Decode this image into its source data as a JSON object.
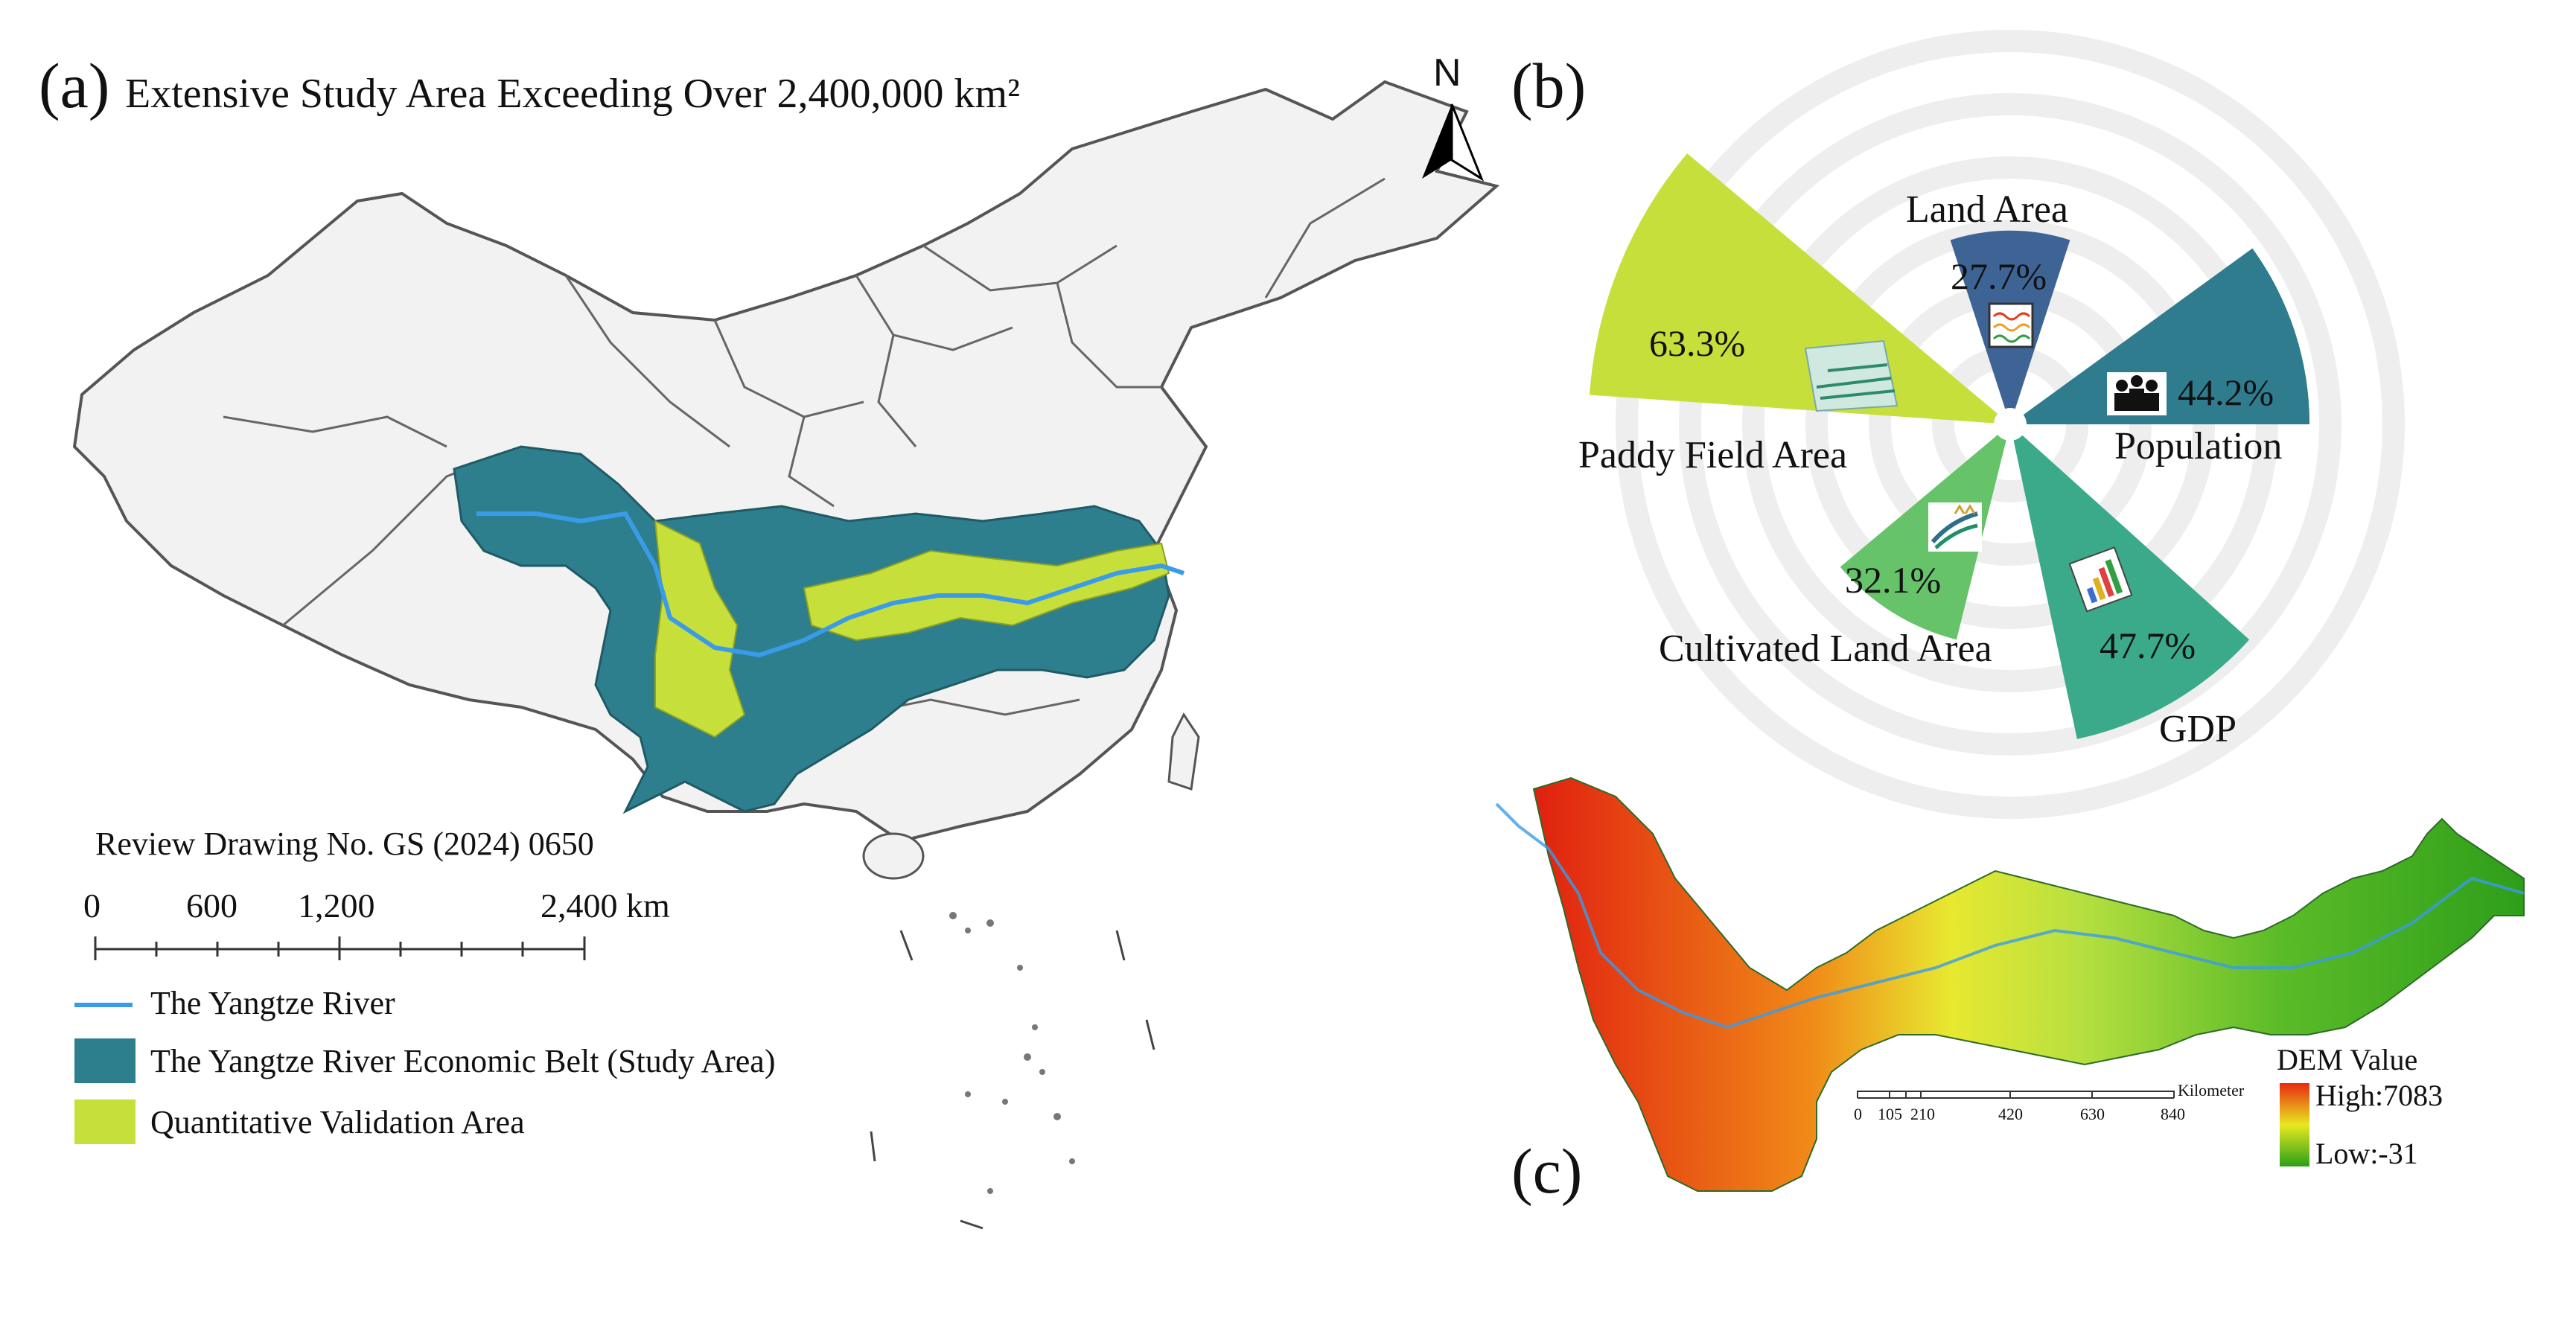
{
  "panel_a": {
    "label": "(a)",
    "title": "Extensive Study Area Exceeding Over 2,400,000 km²",
    "north_label": "N",
    "review_text": "Review Drawing No. GS (2024) 0650",
    "scale_labels": [
      "0",
      "600",
      "1,200",
      "2,400 km"
    ],
    "legend": [
      {
        "label": "The Yangtze River",
        "color": "#3a9be8",
        "symbol": "line"
      },
      {
        "label": "The Yangtze River Economic Belt (Study Area)",
        "color": "#2e7f8d",
        "symbol": "box"
      },
      {
        "label": "Quantitative Validation Area",
        "color": "#c6df3a",
        "symbol": "box"
      }
    ],
    "colors": {
      "land": "#f2f2f2",
      "border": "#555555",
      "study": "#2e7f8d",
      "validation": "#c6df3a",
      "river": "#3a9be8"
    }
  },
  "panel_b": {
    "label": "(b)",
    "chart_data": {
      "type": "pie",
      "variant": "nightingale-rose",
      "categories": [
        "Land Area",
        "Population",
        "GDP",
        "Cultivated Land Area",
        "Paddy Field Area"
      ],
      "values": [
        27.7,
        44.2,
        47.7,
        32.1,
        63.3
      ],
      "value_labels": [
        "27.7%",
        "44.2%",
        "47.7%",
        "32.1%",
        "63.3%"
      ],
      "colors": [
        "#3e6496",
        "#2e7c8e",
        "#3aaa8a",
        "#66c36a",
        "#c6df3a"
      ],
      "icons": [
        "terrain-chart-icon",
        "people-icon",
        "gdp-chart-icon",
        "field-icon",
        "paddy-field-icon"
      ]
    }
  },
  "panel_c": {
    "label": "(c)",
    "legend_title": "DEM Value",
    "high_label": "High:7083",
    "low_label": "Low:-31",
    "scale_unit": "Kilometer",
    "scale_labels": [
      "0",
      "105",
      "210",
      "420",
      "630",
      "840"
    ],
    "colors": {
      "high": "#e82a10",
      "mid": "#e8e820",
      "low": "#2aa018"
    }
  }
}
